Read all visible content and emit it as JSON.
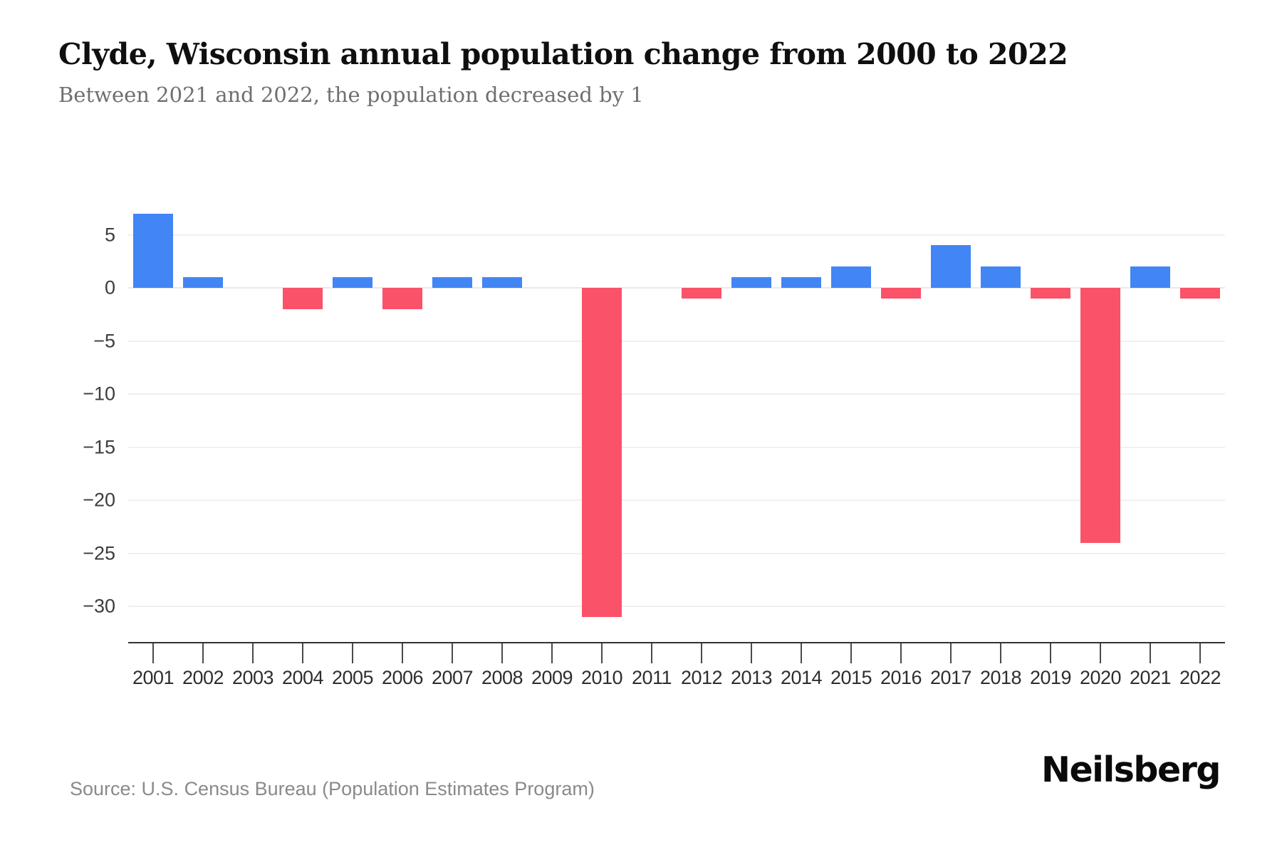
{
  "header": {
    "title": "Clyde, Wisconsin annual population change from 2000 to 2022",
    "subtitle": "Between 2021 and 2022, the population decreased by 1"
  },
  "footer": {
    "source": "Source: U.S. Census Bureau (Population Estimates Program)",
    "brand": "Neilsberg"
  },
  "chart_data": {
    "type": "bar",
    "title": "Clyde, Wisconsin annual population change from 2000 to 2022",
    "categories": [
      "2001",
      "2002",
      "2003",
      "2004",
      "2005",
      "2006",
      "2007",
      "2008",
      "2009",
      "2010",
      "2011",
      "2012",
      "2013",
      "2014",
      "2015",
      "2016",
      "2017",
      "2018",
      "2019",
      "2020",
      "2021",
      "2022"
    ],
    "values": [
      7,
      1,
      0,
      -2,
      1,
      -2,
      1,
      1,
      0,
      -31,
      0,
      -1,
      1,
      1,
      2,
      -1,
      4,
      2,
      -1,
      -24,
      2,
      -1
    ],
    "xlabel": "",
    "ylabel": "",
    "yticks": [
      5,
      0,
      -5,
      -10,
      -15,
      -20,
      -25,
      -30
    ],
    "ylim": [
      -32,
      8
    ],
    "grid": true,
    "legend": false,
    "colors": {
      "positive": "#4285F4",
      "negative": "#FA5268"
    }
  }
}
